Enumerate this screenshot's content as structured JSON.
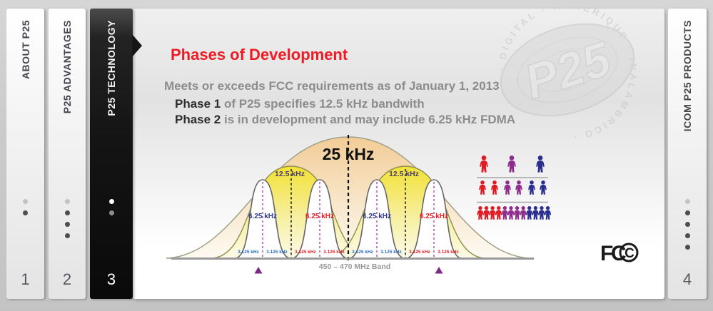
{
  "colors": {
    "red_accent": "#ed1c24",
    "text_gray": "#8c8c8c",
    "text_dark": "#2e2e2e",
    "label_blue": "#2b3990",
    "label_red": "#ed1c24",
    "label_small_blue": "#2a6bc5",
    "label_purple": "#4a3f72",
    "label_black": "#111111",
    "person_red": "#e01b24",
    "person_purple": "#8e2d8e",
    "person_blue": "#2a2f8f",
    "triangle_purple": "#7b2a86"
  },
  "tabs": [
    {
      "label": "ABOUT P25",
      "number": "1",
      "dot_count": 2,
      "active": false
    },
    {
      "label": "P25 ADVANTAGES",
      "number": "2",
      "dot_count": 4,
      "active": false
    },
    {
      "label": "P25 TECHNOLOGY",
      "number": "3",
      "dot_count": 2,
      "active": true
    },
    {
      "label": "ICOM P25 PRODUCTS",
      "number": "4",
      "dot_count": 5,
      "active": false
    }
  ],
  "content": {
    "heading": "Phases of Development",
    "intro": "Meets or exceeds FCC requirements as of January 1, 2013",
    "phase1_label": "Phase 1",
    "phase1_text": " of P25 specifies 12.5 kHz bandwith",
    "phase2_label": "Phase 2",
    "phase2_text": " is in development and may include 6.25 kHz FDMA"
  },
  "diagram": {
    "bw25": "25 kHz",
    "bw125": "12.5 kHz",
    "bw625": "6.25 kHz",
    "bw3125": "3.125 kHz",
    "band": "450 – 470 MHz Band",
    "capacity_rows": [
      3,
      6,
      12
    ]
  },
  "watermark": {
    "brand": "P25",
    "ring_text": "· DIGITAL · NUMERIQUE · INALAMBRICO ·"
  },
  "fcc": {
    "text_f": "F",
    "text_c": "C",
    "text_inner_c": "C"
  }
}
